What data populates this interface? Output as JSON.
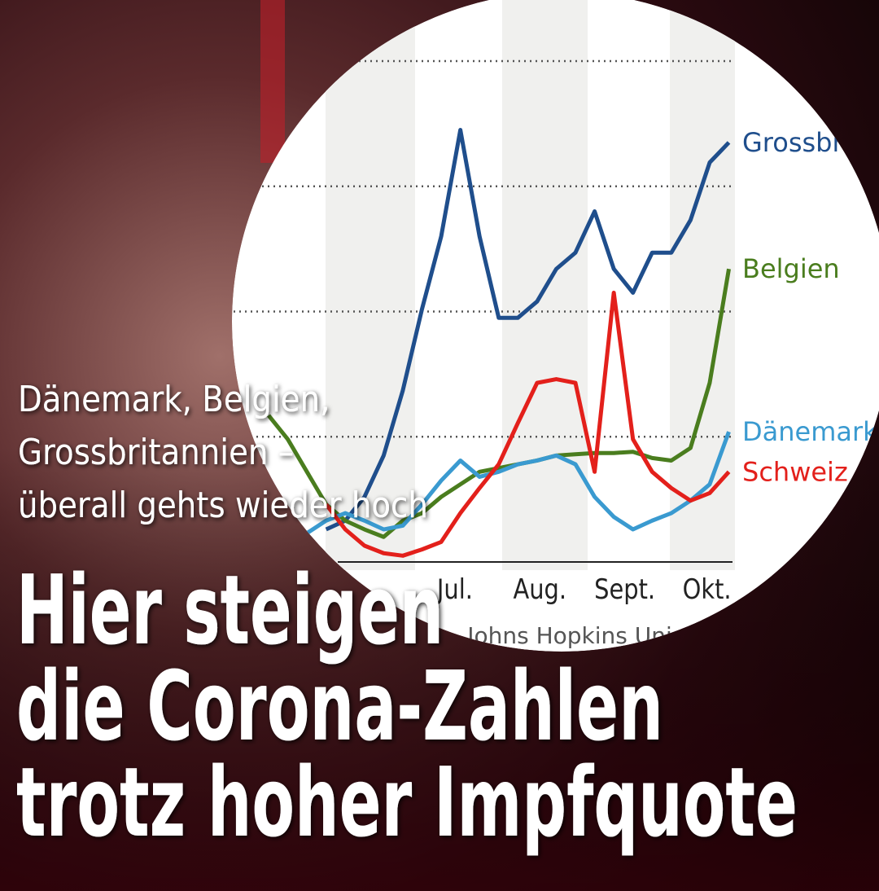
{
  "kicker": [
    "Dänemark, Belgien,",
    "Grossbritannien –",
    "überall gehts wieder hoch"
  ],
  "headline": [
    "Hier steigen",
    "die Corona-Zahlen",
    "trotz hoher Impfquote"
  ],
  "chart_data": {
    "type": "line",
    "source": "Johns Hopkins Uni",
    "x": [
      128,
      135,
      142,
      149,
      156,
      163,
      170,
      177,
      184,
      191,
      198,
      205,
      212,
      219,
      226,
      233,
      240,
      247,
      254,
      261,
      268,
      275,
      282,
      289,
      296
    ],
    "xlim": [
      128,
      300
    ],
    "xticks": [
      {
        "value": 196,
        "label": "Jul."
      },
      {
        "value": 227,
        "label": "Aug."
      },
      {
        "value": 258,
        "label": "Sept."
      },
      {
        "value": 288,
        "label": "Okt."
      }
    ],
    "ylim": [
      0,
      4
    ],
    "yticks": [
      1,
      2,
      3,
      4
    ],
    "grid": true,
    "series": [
      {
        "name": "Grossbritannien",
        "color": "#1f4e8c",
        "values": [
          null,
          null,
          null,
          0.26,
          0.33,
          0.52,
          0.85,
          1.37,
          2.02,
          2.6,
          3.45,
          2.6,
          1.95,
          1.95,
          2.08,
          2.34,
          2.47,
          2.8,
          2.34,
          2.15,
          2.47,
          2.47,
          2.73,
          3.19,
          3.35
        ]
      },
      {
        "name": "Belgien",
        "color": "#4a7d1e",
        "values": [
          1.17,
          0.98,
          0.72,
          0.46,
          0.33,
          0.26,
          0.2,
          0.33,
          0.39,
          0.52,
          0.62,
          0.72,
          0.75,
          0.78,
          0.81,
          0.85,
          0.86,
          0.87,
          0.87,
          0.88,
          0.83,
          0.81,
          0.91,
          1.43,
          2.34
        ]
      },
      {
        "name": "Dänemark",
        "color": "#3a9ad0",
        "values": [
          null,
          null,
          0.23,
          0.33,
          0.39,
          0.33,
          0.26,
          0.29,
          0.46,
          0.65,
          0.81,
          0.68,
          0.72,
          0.78,
          0.81,
          0.85,
          0.78,
          0.52,
          0.36,
          0.26,
          0.33,
          0.39,
          0.49,
          0.62,
          1.04
        ]
      },
      {
        "name": "Schweiz",
        "color": "#e3201b",
        "values": [
          null,
          null,
          null,
          0.46,
          0.26,
          0.13,
          0.07,
          0.05,
          0.1,
          0.16,
          0.39,
          0.59,
          0.78,
          1.11,
          1.43,
          1.46,
          1.43,
          0.72,
          2.15,
          0.98,
          0.72,
          0.59,
          0.49,
          0.55,
          0.72
        ]
      }
    ]
  }
}
